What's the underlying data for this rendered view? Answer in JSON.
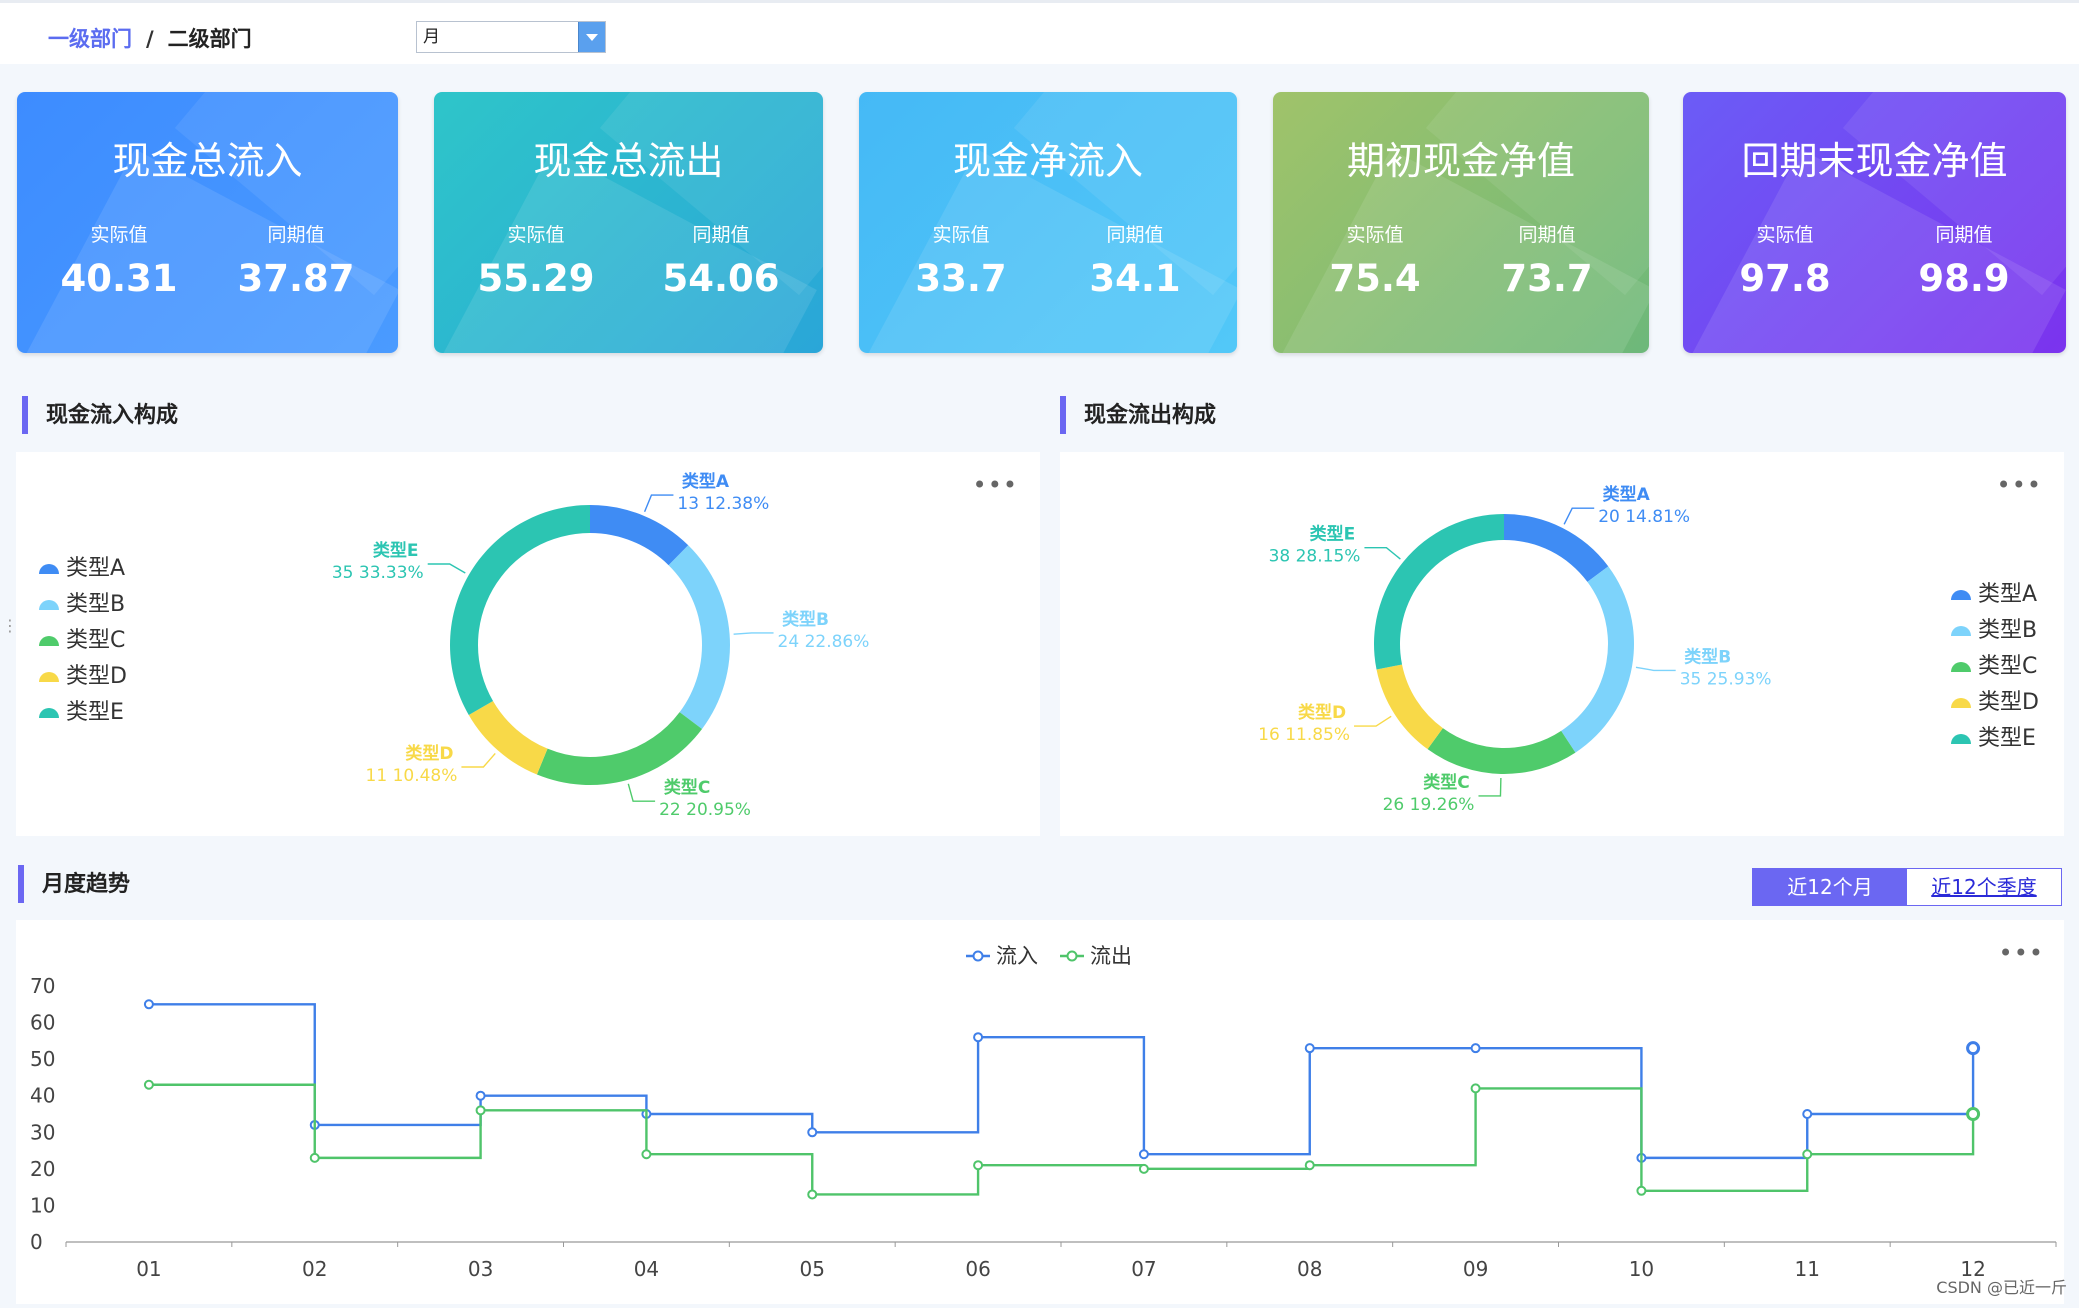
{
  "breadcrumb": {
    "level1": "一级部门",
    "separator": "/",
    "level2": "二级部门"
  },
  "period_select": {
    "value": "月"
  },
  "cards": [
    {
      "title": "现金总流入",
      "actual_label": "实际值",
      "actual": "40.31",
      "prior_label": "同期值",
      "prior": "37.87",
      "colors": [
        "#3d8cff",
        "#4a9bff"
      ]
    },
    {
      "title": "现金总流出",
      "actual_label": "实际值",
      "actual": "55.29",
      "prior_label": "同期值",
      "prior": "54.06",
      "colors": [
        "#2ec5c9",
        "#2aa6d8"
      ]
    },
    {
      "title": "现金净流入",
      "actual_label": "实际值",
      "actual": "33.7",
      "prior_label": "同期值",
      "prior": "34.1",
      "colors": [
        "#45b9f6",
        "#52c8f8"
      ]
    },
    {
      "title": "期初现金净值",
      "actual_label": "实际值",
      "actual": "75.4",
      "prior_label": "同期值",
      "prior": "73.7",
      "colors": [
        "#a0c36a",
        "#6db87a"
      ]
    },
    {
      "title": "回期末现金净值",
      "actual_label": "实际值",
      "actual": "97.8",
      "prior_label": "同期值",
      "prior": "98.9",
      "colors": [
        "#6b5cf6",
        "#7b33ee"
      ]
    }
  ],
  "sections": {
    "inflow_title": "现金流入构成",
    "outflow_title": "现金流出构成",
    "trend_title": "月度趋势"
  },
  "tabs": {
    "active": "近12个月",
    "inactive": "近12个季度"
  },
  "more_icon": "•••",
  "inflow_pie": {
    "type": "pie",
    "legend_position": "left",
    "slices": [
      {
        "name": "类型A",
        "value": 13,
        "percent": "12.38%",
        "color": "#3f8cf4"
      },
      {
        "name": "类型B",
        "value": 24,
        "percent": "22.86%",
        "color": "#7dd3fb"
      },
      {
        "name": "类型C",
        "value": 22,
        "percent": "20.95%",
        "color": "#4fcb6b"
      },
      {
        "name": "类型D",
        "value": 11,
        "percent": "10.48%",
        "color": "#f8d948"
      },
      {
        "name": "类型E",
        "value": 35,
        "percent": "33.33%",
        "color": "#2cc5b2"
      }
    ]
  },
  "outflow_pie": {
    "type": "pie",
    "legend_position": "right",
    "slices": [
      {
        "name": "类型A",
        "value": 20,
        "percent": "14.81%",
        "color": "#3f8cf4"
      },
      {
        "name": "类型B",
        "value": 35,
        "percent": "25.93%",
        "color": "#7dd3fb"
      },
      {
        "name": "类型C",
        "value": 26,
        "percent": "19.26%",
        "color": "#4fcb6b"
      },
      {
        "name": "类型D",
        "value": 16,
        "percent": "11.85%",
        "color": "#f8d948"
      },
      {
        "name": "类型E",
        "value": 38,
        "percent": "28.15%",
        "color": "#2cc5b2"
      }
    ]
  },
  "chart_data": {
    "type": "line",
    "step": "end",
    "categories": [
      "01",
      "02",
      "03",
      "04",
      "05",
      "06",
      "07",
      "08",
      "09",
      "10",
      "11",
      "12"
    ],
    "ylim": [
      0,
      70
    ],
    "yticks": [
      "0",
      "10",
      "20",
      "30",
      "40",
      "50",
      "60",
      "70"
    ],
    "legend_position": "top-center",
    "series": [
      {
        "name": "流入",
        "color": "#3f7fe8",
        "values": [
          65,
          32,
          40,
          35,
          30,
          56,
          24,
          53,
          53,
          23,
          35,
          53
        ]
      },
      {
        "name": "流出",
        "color": "#4fc46a",
        "values": [
          43,
          23,
          36,
          24,
          13,
          21,
          20,
          21,
          42,
          14,
          24,
          35
        ]
      }
    ]
  },
  "watermark": "CSDN @已近一斤"
}
